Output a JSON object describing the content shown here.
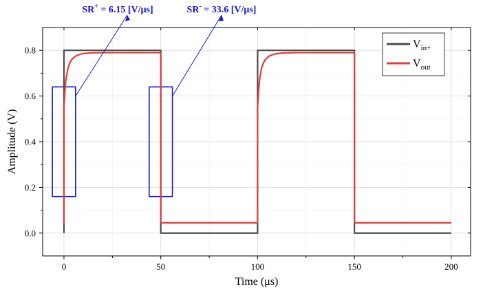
{
  "chart_data": {
    "type": "line",
    "xlabel": "Time (μs)",
    "ylabel": "Amplitude (V)",
    "xlim": [
      -11,
      210
    ],
    "ylim": [
      -0.1,
      0.9
    ],
    "x_ticks": [
      0,
      50,
      100,
      150,
      200
    ],
    "x_tick_labels": [
      "0",
      "50",
      "100",
      "150",
      "200"
    ],
    "y_ticks": [
      0.0,
      0.2,
      0.4,
      0.6,
      0.8
    ],
    "y_tick_labels": [
      "0.0",
      "0.2",
      "0.4",
      "0.6",
      "0.8"
    ],
    "grid": true,
    "legend_position": "top-right",
    "series": [
      {
        "name": "V_in+",
        "legend_main": "V",
        "legend_sub": "in+",
        "color": "#4a4a4a",
        "x": [
          0,
          0,
          50,
          50,
          100,
          100,
          150,
          150,
          200
        ],
        "y": [
          0.0,
          0.8,
          0.8,
          0.0,
          0.0,
          0.8,
          0.8,
          0.0,
          0.0
        ]
      },
      {
        "name": "V_out",
        "legend_main": "V",
        "legend_sub": "out",
        "color": "#e03c3c",
        "x": [
          0,
          0,
          0.5,
          1,
          2,
          3,
          4,
          6,
          8,
          10,
          14,
          20,
          30,
          40,
          50,
          50,
          60,
          70,
          80,
          90,
          100,
          100,
          100.5,
          101,
          102,
          103,
          104,
          106,
          108,
          110,
          114,
          120,
          130,
          140,
          150,
          150,
          160,
          170,
          180,
          190,
          200
        ],
        "y": [
          0.04,
          0.55,
          0.62,
          0.67,
          0.72,
          0.745,
          0.76,
          0.775,
          0.782,
          0.786,
          0.789,
          0.79,
          0.79,
          0.79,
          0.79,
          0.045,
          0.045,
          0.045,
          0.045,
          0.045,
          0.045,
          0.55,
          0.62,
          0.67,
          0.72,
          0.745,
          0.76,
          0.775,
          0.782,
          0.786,
          0.789,
          0.79,
          0.79,
          0.79,
          0.79,
          0.045,
          0.045,
          0.045,
          0.045,
          0.045,
          0.045
        ]
      }
    ],
    "highlight_boxes": [
      {
        "x0": -6,
        "x1": 6,
        "y0": 0.16,
        "y1": 0.64,
        "color": "#1414d2"
      },
      {
        "x0": 44,
        "x1": 56,
        "y0": 0.16,
        "y1": 0.64,
        "color": "#1414d2"
      }
    ],
    "annotations": [
      {
        "id": "sr-plus",
        "prefix": "SR",
        "sup": "+",
        "suffix": " = 6.15 [V/μs]",
        "color": "#1414d2"
      },
      {
        "id": "sr-minus",
        "prefix": "SR",
        "sup": "-",
        "suffix": " = 33.6 [V/μs]",
        "color": "#1414d2"
      }
    ]
  }
}
